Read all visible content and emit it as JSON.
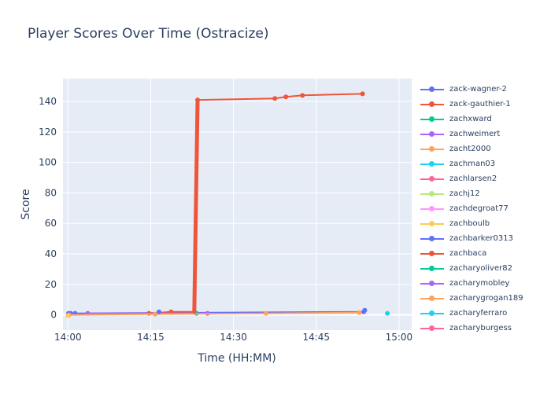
{
  "chart_data": {
    "type": "line",
    "title": "Player Scores Over Time (Ostracize)",
    "xlabel": "Time (HH:MM)",
    "ylabel": "Score",
    "x_axis_unit": "minutes after 14:00",
    "x_ticks": [
      {
        "value": 0,
        "label": "14:00"
      },
      {
        "value": 15,
        "label": "14:15"
      },
      {
        "value": 30,
        "label": "14:30"
      },
      {
        "value": 45,
        "label": "14:45"
      },
      {
        "value": 60,
        "label": "15:00"
      }
    ],
    "y_ticks": [
      0,
      20,
      40,
      60,
      80,
      100,
      120,
      140
    ],
    "xlim": [
      -0.9,
      62.3
    ],
    "ylim": [
      -10,
      155
    ],
    "grid": true,
    "legend_position": "right",
    "series": [
      {
        "name": "zack-wagner-2",
        "color": "#636efa",
        "points": [
          [
            0.1,
            1
          ],
          [
            0.5,
            1
          ],
          [
            1.3,
            1
          ],
          [
            53.6,
            2
          ],
          [
            53.8,
            3
          ]
        ]
      },
      {
        "name": "zack-gauthier-1",
        "color": "#ef553b",
        "points": [
          [
            14.7,
            1
          ],
          [
            18.7,
            2
          ],
          [
            22.9,
            2
          ],
          [
            23.5,
            141
          ],
          [
            37.5,
            142
          ],
          [
            39.5,
            143
          ],
          [
            42.5,
            144
          ],
          [
            53.4,
            145
          ]
        ]
      },
      {
        "name": "zachxward",
        "color": "#00cc96",
        "points": [
          [
            23.3,
            1
          ]
        ]
      },
      {
        "name": "zachweimert",
        "color": "#ab63fa",
        "points": [
          [
            3.6,
            1
          ],
          [
            25.3,
            1
          ]
        ]
      },
      {
        "name": "zacht2000",
        "color": "#ffa15a",
        "points": [
          [
            0.2,
            0
          ],
          [
            15.8,
            0.5
          ],
          [
            35.9,
            1
          ],
          [
            52.8,
            1.5
          ]
        ]
      },
      {
        "name": "zachman03",
        "color": "#19d3f3",
        "points": [
          [
            57.9,
            1
          ]
        ]
      },
      {
        "name": "zachlarsen2",
        "color": "#ff6692",
        "points": []
      },
      {
        "name": "zachj12",
        "color": "#b6e880",
        "points": []
      },
      {
        "name": "zachdegroat77",
        "color": "#ff97ff",
        "points": []
      },
      {
        "name": "zachboulb",
        "color": "#fecb52",
        "points": [
          [
            0.0,
            -0.5
          ]
        ]
      },
      {
        "name": "zachbarker0313",
        "color": "#636efa",
        "points": [
          [
            16.5,
            2
          ]
        ]
      },
      {
        "name": "zachbaca",
        "color": "#ef553b",
        "points": []
      },
      {
        "name": "zacharyoliver82",
        "color": "#00cc96",
        "points": []
      },
      {
        "name": "zacharymobley",
        "color": "#ab63fa",
        "points": []
      },
      {
        "name": "zacharygrogan189",
        "color": "#ffa15a",
        "points": []
      },
      {
        "name": "zacharyferraro",
        "color": "#19d3f3",
        "points": []
      },
      {
        "name": "zacharyburgess",
        "color": "#ff6692",
        "points": []
      }
    ]
  }
}
